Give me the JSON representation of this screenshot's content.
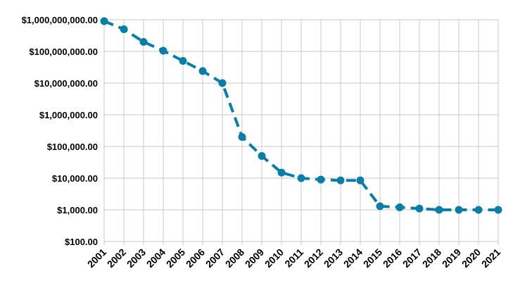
{
  "chart_data": {
    "type": "line",
    "title": "",
    "xlabel": "",
    "ylabel": "",
    "y_scale": "log",
    "ylim": [
      100,
      1000000000
    ],
    "grid": true,
    "legend": "none",
    "line_style": "dashed",
    "marker": "circle",
    "series_color": "#0b7ea6",
    "grid_color": "#c8c8c8",
    "x": [
      "2001",
      "2002",
      "2003",
      "2004",
      "2005",
      "2006",
      "2007",
      "2008",
      "2009",
      "2010",
      "2011",
      "2012",
      "2013",
      "2014",
      "2015",
      "2016",
      "2017",
      "2018",
      "2019",
      "2020",
      "2021"
    ],
    "y_ticks": [
      {
        "value": 1000000000,
        "label": "$1,000,000,000.00"
      },
      {
        "value": 100000000,
        "label": "$100,000,000.00"
      },
      {
        "value": 10000000,
        "label": "$10,000,000.00"
      },
      {
        "value": 1000000,
        "label": "$1,000,000.00"
      },
      {
        "value": 100000,
        "label": "$100,000.00"
      },
      {
        "value": 10000,
        "label": "$10,000.00"
      },
      {
        "value": 1000,
        "label": "$1,000.00"
      },
      {
        "value": 100,
        "label": "$100.00"
      }
    ],
    "series": [
      {
        "values": [
          900000000,
          500000000,
          200000000,
          105000000,
          50000000,
          24000000,
          10000000,
          200000,
          50000,
          15000,
          10000,
          9000,
          8500,
          8500,
          1300,
          1200,
          1100,
          1000,
          1000,
          1000,
          1000
        ]
      }
    ]
  }
}
